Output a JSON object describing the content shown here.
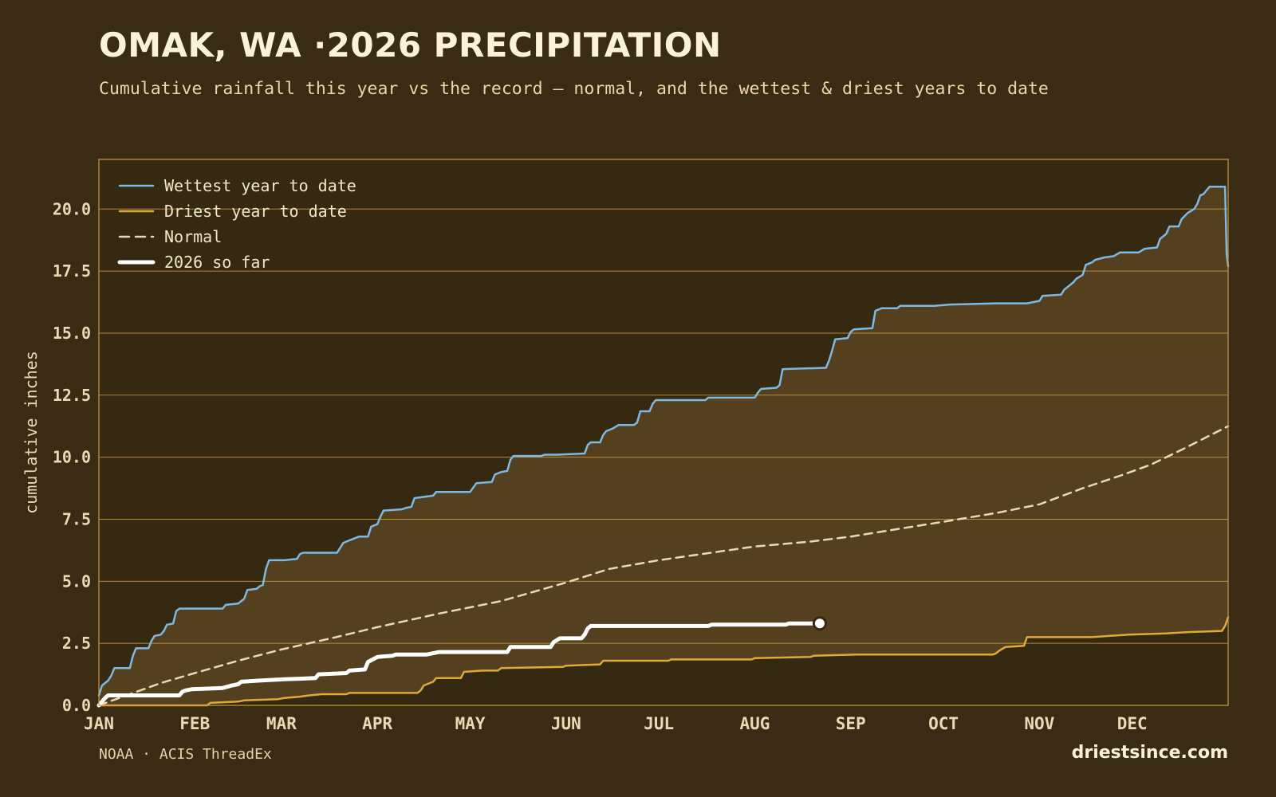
{
  "title": "OMAK, WA ·2026 PRECIPITATION",
  "subtitle": "Cumulative rainfall this year vs the record — normal, and the wettest & driest years to date",
  "source": "NOAA · ACIS ThreadEx",
  "brand": "driestsince.com",
  "colors": {
    "background": "#3a2c14",
    "plot_background": "#352912",
    "band_fill": "#54401f",
    "grid": "#c99a3c",
    "wettest": "#7fb8e0",
    "driest": "#e0a93c",
    "normal": "#ead9b4",
    "current": "#ffffff",
    "tick_text": "#ead9b4"
  },
  "chart_data": {
    "type": "line",
    "ylabel": "cumulative inches",
    "ylim": [
      0,
      22
    ],
    "yticks": [
      "0.0",
      "2.5",
      "5.0",
      "7.5",
      "10.0",
      "12.5",
      "15.0",
      "17.5",
      "20.0"
    ],
    "ytick_values": [
      0,
      2.5,
      5,
      7.5,
      10,
      12.5,
      15,
      17.5,
      20
    ],
    "xlim": [
      0,
      365
    ],
    "months": [
      "JAN",
      "FEB",
      "MAR",
      "APR",
      "MAY",
      "JUN",
      "JUL",
      "AUG",
      "SEP",
      "OCT",
      "NOV",
      "DEC"
    ],
    "month_start_days": [
      0,
      31,
      59,
      90,
      120,
      151,
      181,
      212,
      243,
      273,
      304,
      334
    ],
    "grid": "horizontal",
    "legend_position": "top-left",
    "band": {
      "upper": "Wettest year to date",
      "lower": "Driest year to date"
    },
    "series": [
      {
        "name": "Wettest year to date",
        "style": "solid",
        "width": 2.5,
        "points": [
          [
            0,
            0.4
          ],
          [
            1,
            0.8
          ],
          [
            3,
            1.0
          ],
          [
            4,
            1.2
          ],
          [
            5,
            1.5
          ],
          [
            9,
            1.5
          ],
          [
            10,
            1.5
          ],
          [
            11,
            2.0
          ],
          [
            12,
            2.3
          ],
          [
            16,
            2.3
          ],
          [
            17,
            2.6
          ],
          [
            18,
            2.8
          ],
          [
            20,
            2.85
          ],
          [
            21,
            3.0
          ],
          [
            22,
            3.25
          ],
          [
            24,
            3.3
          ],
          [
            25,
            3.8
          ],
          [
            26,
            3.9
          ],
          [
            30,
            3.9
          ],
          [
            40,
            3.9
          ],
          [
            41,
            4.05
          ],
          [
            45,
            4.1
          ],
          [
            47,
            4.3
          ],
          [
            48,
            4.65
          ],
          [
            51,
            4.7
          ],
          [
            52,
            4.8
          ],
          [
            53,
            4.85
          ],
          [
            54,
            5.5
          ],
          [
            55,
            5.85
          ],
          [
            60,
            5.85
          ],
          [
            64,
            5.9
          ],
          [
            65,
            6.1
          ],
          [
            66,
            6.15
          ],
          [
            77,
            6.15
          ],
          [
            78,
            6.35
          ],
          [
            79,
            6.55
          ],
          [
            81,
            6.65
          ],
          [
            82,
            6.7
          ],
          [
            84,
            6.8
          ],
          [
            87,
            6.8
          ],
          [
            88,
            7.2
          ],
          [
            90,
            7.3
          ],
          [
            91,
            7.6
          ],
          [
            92,
            7.85
          ],
          [
            98,
            7.9
          ],
          [
            99,
            7.95
          ],
          [
            101,
            8.0
          ],
          [
            102,
            8.35
          ],
          [
            108,
            8.45
          ],
          [
            109,
            8.6
          ],
          [
            110,
            8.6
          ],
          [
            113,
            8.6
          ],
          [
            120,
            8.6
          ],
          [
            122,
            8.95
          ],
          [
            127,
            9.0
          ],
          [
            128,
            9.3
          ],
          [
            130,
            9.4
          ],
          [
            132,
            9.45
          ],
          [
            133,
            9.9
          ],
          [
            134,
            10.05
          ],
          [
            143,
            10.05
          ],
          [
            144,
            10.1
          ],
          [
            148,
            10.1
          ],
          [
            157,
            10.15
          ],
          [
            158,
            10.5
          ],
          [
            159,
            10.6
          ],
          [
            162,
            10.6
          ],
          [
            163,
            10.9
          ],
          [
            164,
            11.05
          ],
          [
            166,
            11.15
          ],
          [
            168,
            11.3
          ],
          [
            173,
            11.3
          ],
          [
            174,
            11.4
          ],
          [
            175,
            11.85
          ],
          [
            178,
            11.85
          ],
          [
            179,
            12.15
          ],
          [
            180,
            12.3
          ],
          [
            196,
            12.3
          ],
          [
            197,
            12.4
          ],
          [
            212,
            12.4
          ],
          [
            213,
            12.6
          ],
          [
            214,
            12.75
          ],
          [
            219,
            12.8
          ],
          [
            220,
            12.9
          ],
          [
            221,
            13.55
          ],
          [
            235,
            13.6
          ],
          [
            236,
            13.9
          ],
          [
            237,
            14.3
          ],
          [
            238,
            14.75
          ],
          [
            242,
            14.8
          ],
          [
            243,
            15.05
          ],
          [
            244,
            15.15
          ],
          [
            250,
            15.2
          ],
          [
            251,
            15.9
          ],
          [
            253,
            16.0
          ],
          [
            258,
            16.0
          ],
          [
            259,
            16.1
          ],
          [
            270,
            16.1
          ],
          [
            275,
            16.15
          ],
          [
            290,
            16.2
          ],
          [
            300,
            16.2
          ],
          [
            304,
            16.3
          ],
          [
            305,
            16.5
          ],
          [
            311,
            16.55
          ],
          [
            312,
            16.75
          ],
          [
            313,
            16.85
          ],
          [
            315,
            17.05
          ],
          [
            316,
            17.2
          ],
          [
            318,
            17.35
          ],
          [
            319,
            17.75
          ],
          [
            321,
            17.85
          ],
          [
            322,
            17.95
          ],
          [
            325,
            18.05
          ],
          [
            328,
            18.1
          ],
          [
            330,
            18.25
          ],
          [
            336,
            18.25
          ],
          [
            338,
            18.4
          ],
          [
            342,
            18.45
          ],
          [
            343,
            18.8
          ],
          [
            345,
            19.0
          ],
          [
            346,
            19.3
          ],
          [
            349,
            19.3
          ],
          [
            350,
            19.6
          ],
          [
            352,
            19.85
          ],
          [
            354,
            20.0
          ],
          [
            355,
            20.2
          ],
          [
            356,
            20.55
          ],
          [
            357,
            20.6
          ],
          [
            358,
            20.75
          ],
          [
            359,
            20.9
          ],
          [
            364,
            20.9
          ],
          [
            364.5,
            18.2
          ],
          [
            365,
            17.7
          ]
        ]
      },
      {
        "name": "Driest year to date",
        "style": "solid",
        "width": 2.5,
        "points": [
          [
            0,
            0
          ],
          [
            35,
            0
          ],
          [
            36,
            0.1
          ],
          [
            45,
            0.15
          ],
          [
            47,
            0.2
          ],
          [
            58,
            0.25
          ],
          [
            60,
            0.3
          ],
          [
            65,
            0.35
          ],
          [
            68,
            0.4
          ],
          [
            72,
            0.45
          ],
          [
            80,
            0.45
          ],
          [
            81,
            0.5
          ],
          [
            100,
            0.5
          ],
          [
            103,
            0.5
          ],
          [
            104,
            0.6
          ],
          [
            105,
            0.8
          ],
          [
            107,
            0.9
          ],
          [
            108,
            0.95
          ],
          [
            109,
            1.1
          ],
          [
            117,
            1.1
          ],
          [
            118,
            1.35
          ],
          [
            124,
            1.4
          ],
          [
            129,
            1.4
          ],
          [
            130,
            1.5
          ],
          [
            150,
            1.55
          ],
          [
            151,
            1.6
          ],
          [
            162,
            1.65
          ],
          [
            163,
            1.8
          ],
          [
            184,
            1.8
          ],
          [
            185,
            1.85
          ],
          [
            211,
            1.85
          ],
          [
            212,
            1.9
          ],
          [
            230,
            1.95
          ],
          [
            231,
            2.0
          ],
          [
            245,
            2.05
          ],
          [
            258,
            2.05
          ],
          [
            289,
            2.05
          ],
          [
            290,
            2.1
          ],
          [
            291,
            2.2
          ],
          [
            293,
            2.35
          ],
          [
            299,
            2.4
          ],
          [
            300,
            2.75
          ],
          [
            321,
            2.75
          ],
          [
            327,
            2.8
          ],
          [
            333,
            2.85
          ],
          [
            345,
            2.9
          ],
          [
            352,
            2.95
          ],
          [
            363,
            3.0
          ],
          [
            364,
            3.2
          ],
          [
            365,
            3.55
          ]
        ]
      },
      {
        "name": "Normal",
        "style": "dashed",
        "width": 2.5,
        "points": [
          [
            0,
            0
          ],
          [
            10,
            0.45
          ],
          [
            20,
            0.9
          ],
          [
            31,
            1.3
          ],
          [
            45,
            1.8
          ],
          [
            59,
            2.25
          ],
          [
            75,
            2.7
          ],
          [
            90,
            3.15
          ],
          [
            110,
            3.7
          ],
          [
            130,
            4.2
          ],
          [
            151,
            4.95
          ],
          [
            165,
            5.5
          ],
          [
            181,
            5.85
          ],
          [
            195,
            6.1
          ],
          [
            212,
            6.4
          ],
          [
            230,
            6.6
          ],
          [
            243,
            6.8
          ],
          [
            258,
            7.1
          ],
          [
            273,
            7.4
          ],
          [
            290,
            7.75
          ],
          [
            304,
            8.1
          ],
          [
            318,
            8.75
          ],
          [
            330,
            9.25
          ],
          [
            340,
            9.7
          ],
          [
            350,
            10.3
          ],
          [
            365,
            11.25
          ]
        ]
      },
      {
        "name": "2026 so far",
        "style": "solid",
        "width": 5,
        "points": [
          [
            0,
            0
          ],
          [
            2,
            0.3
          ],
          [
            3,
            0.4
          ],
          [
            16,
            0.4
          ],
          [
            26,
            0.4
          ],
          [
            27,
            0.55
          ],
          [
            28,
            0.6
          ],
          [
            30,
            0.65
          ],
          [
            40,
            0.7
          ],
          [
            43,
            0.8
          ],
          [
            45,
            0.85
          ],
          [
            46,
            0.95
          ],
          [
            52,
            1.0
          ],
          [
            60,
            1.05
          ],
          [
            70,
            1.1
          ],
          [
            71,
            1.25
          ],
          [
            80,
            1.3
          ],
          [
            81,
            1.4
          ],
          [
            86,
            1.45
          ],
          [
            87,
            1.75
          ],
          [
            90,
            1.95
          ],
          [
            95,
            2.0
          ],
          [
            96,
            2.05
          ],
          [
            106,
            2.05
          ],
          [
            110,
            2.15
          ],
          [
            132,
            2.15
          ],
          [
            133,
            2.35
          ],
          [
            146,
            2.35
          ],
          [
            147,
            2.55
          ],
          [
            149,
            2.7
          ],
          [
            156,
            2.7
          ],
          [
            157,
            2.85
          ],
          [
            158,
            3.1
          ],
          [
            159,
            3.2
          ],
          [
            180,
            3.2
          ],
          [
            197,
            3.2
          ],
          [
            198,
            3.25
          ],
          [
            222,
            3.25
          ],
          [
            223,
            3.3
          ],
          [
            233,
            3.3
          ]
        ],
        "end_marker": true
      }
    ]
  }
}
